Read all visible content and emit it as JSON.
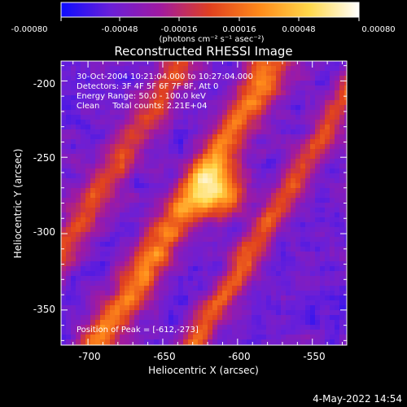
{
  "colorbar": {
    "ticks": [
      "-0.00080",
      "-0.00048",
      "-0.00016",
      "0.00016",
      "0.00048",
      "0.00080"
    ],
    "unit_label": "(photons cm⁻² s⁻¹ asec⁻²)",
    "palette": [
      "#0d0dff",
      "#6a1fd8",
      "#a01aa0",
      "#e0401f",
      "#ff8a1a",
      "#ffd84a",
      "#ffffff"
    ]
  },
  "image": {
    "title": "Reconstructed RHESSI Image",
    "info_lines": [
      "30-Oct-2004 10:21:04.000 to 10:27:04.000",
      "Detectors: 3F 4F 5F 6F 7F 8F, Att 0",
      "Energy Range: 50.0 - 100.0 keV",
      "Clean     Total counts: 2.21E+04"
    ],
    "peak_label": "Position of Peak = [-612,-273]",
    "peak": {
      "x": -612,
      "y": -273
    },
    "x_axis": {
      "label": "Heliocentric X (arcsec)",
      "ticks": [
        "-700",
        "-650",
        "-600",
        "-550"
      ],
      "tick_values": [
        -700,
        -650,
        -600,
        -550
      ],
      "range": [
        -718,
        -527
      ]
    },
    "y_axis": {
      "label": "Heliocentric Y (arcsec)",
      "ticks": [
        "-200",
        "-250",
        "-300",
        "-350"
      ],
      "tick_values": [
        -200,
        -250,
        -300,
        -350
      ],
      "range": [
        -373,
        -187
      ]
    }
  },
  "footer": {
    "timestamp": "4-May-2022 14:54"
  }
}
